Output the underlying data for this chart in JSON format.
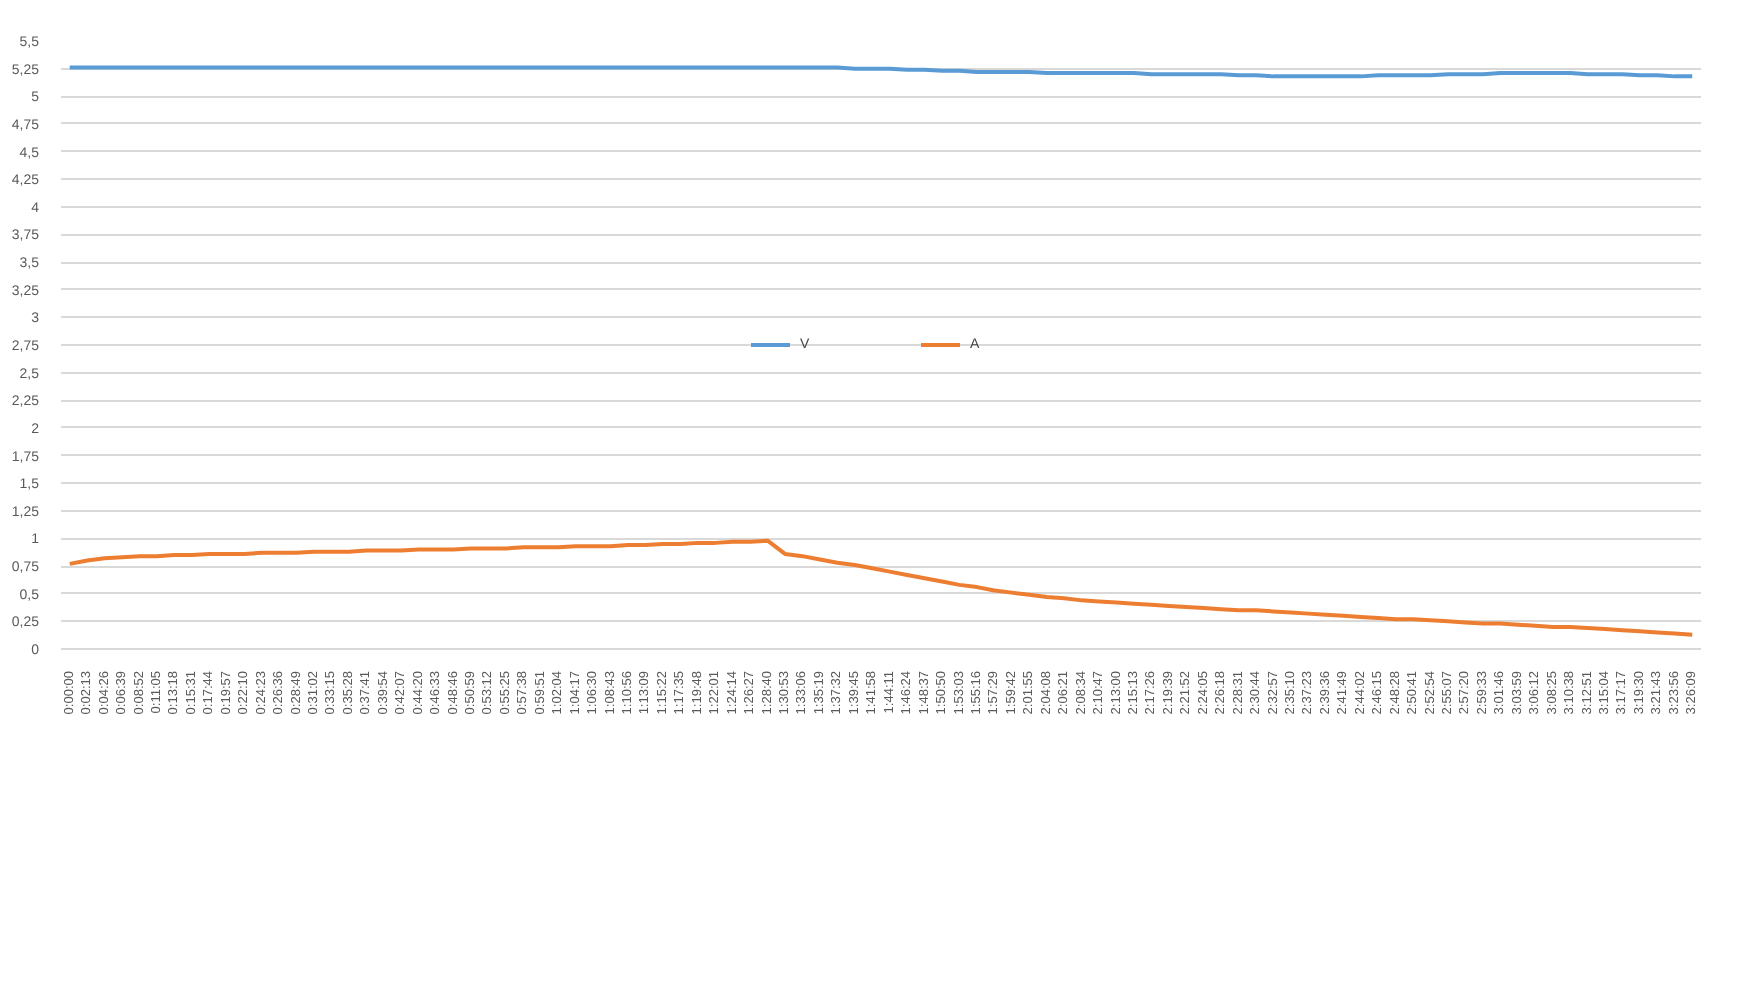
{
  "chart_data": {
    "type": "line",
    "categories": [
      "0:00:00",
      "0:02:13",
      "0:04:26",
      "0:06:39",
      "0:08:52",
      "0:11:05",
      "0:13:18",
      "0:15:31",
      "0:17:44",
      "0:19:57",
      "0:22:10",
      "0:24:23",
      "0:26:36",
      "0:28:49",
      "0:31:02",
      "0:33:15",
      "0:35:28",
      "0:37:41",
      "0:39:54",
      "0:42:07",
      "0:44:20",
      "0:46:33",
      "0:48:46",
      "0:50:59",
      "0:53:12",
      "0:55:25",
      "0:57:38",
      "0:59:51",
      "1:02:04",
      "1:04:17",
      "1:06:30",
      "1:08:43",
      "1:10:56",
      "1:13:09",
      "1:15:22",
      "1:17:35",
      "1:19:48",
      "1:22:01",
      "1:24:14",
      "1:26:27",
      "1:28:40",
      "1:30:53",
      "1:33:06",
      "1:35:19",
      "1:37:32",
      "1:39:45",
      "1:41:58",
      "1:44:11",
      "1:46:24",
      "1:48:37",
      "1:50:50",
      "1:53:03",
      "1:55:16",
      "1:57:29",
      "1:59:42",
      "2:01:55",
      "2:04:08",
      "2:06:21",
      "2:08:34",
      "2:10:47",
      "2:13:00",
      "2:15:13",
      "2:17:26",
      "2:19:39",
      "2:21:52",
      "2:24:05",
      "2:26:18",
      "2:28:31",
      "2:30:44",
      "2:32:57",
      "2:35:10",
      "2:37:23",
      "2:39:36",
      "2:41:49",
      "2:44:02",
      "2:46:15",
      "2:48:28",
      "2:50:41",
      "2:52:54",
      "2:55:07",
      "2:57:20",
      "2:59:33",
      "3:01:46",
      "3:03:59",
      "3:06:12",
      "3:08:25",
      "3:10:38",
      "3:12:51",
      "3:15:04",
      "3:17:17",
      "3:19:30",
      "3:21:43",
      "3:23:56",
      "3:26:09"
    ],
    "series": [
      {
        "name": "V",
        "color": "#5b9bd5",
        "values": [
          5.26,
          5.26,
          5.26,
          5.26,
          5.26,
          5.26,
          5.26,
          5.26,
          5.26,
          5.26,
          5.26,
          5.26,
          5.26,
          5.26,
          5.26,
          5.26,
          5.26,
          5.26,
          5.26,
          5.26,
          5.26,
          5.26,
          5.26,
          5.26,
          5.26,
          5.26,
          5.26,
          5.26,
          5.26,
          5.26,
          5.26,
          5.26,
          5.26,
          5.26,
          5.26,
          5.26,
          5.26,
          5.26,
          5.26,
          5.26,
          5.26,
          5.26,
          5.26,
          5.26,
          5.26,
          5.25,
          5.25,
          5.25,
          5.24,
          5.24,
          5.23,
          5.23,
          5.22,
          5.22,
          5.22,
          5.22,
          5.21,
          5.21,
          5.21,
          5.21,
          5.21,
          5.21,
          5.2,
          5.2,
          5.2,
          5.2,
          5.2,
          5.19,
          5.19,
          5.18,
          5.18,
          5.18,
          5.18,
          5.18,
          5.18,
          5.19,
          5.19,
          5.19,
          5.19,
          5.2,
          5.2,
          5.2,
          5.21,
          5.21,
          5.21,
          5.21,
          5.21,
          5.2,
          5.2,
          5.2,
          5.19,
          5.19,
          5.18,
          5.18
        ]
      },
      {
        "name": "A",
        "color": "#ed7d31",
        "values": [
          0.77,
          0.8,
          0.82,
          0.83,
          0.84,
          0.84,
          0.85,
          0.85,
          0.86,
          0.86,
          0.86,
          0.87,
          0.87,
          0.87,
          0.88,
          0.88,
          0.88,
          0.89,
          0.89,
          0.89,
          0.9,
          0.9,
          0.9,
          0.91,
          0.91,
          0.91,
          0.92,
          0.92,
          0.92,
          0.93,
          0.93,
          0.93,
          0.94,
          0.94,
          0.95,
          0.95,
          0.96,
          0.96,
          0.97,
          0.97,
          0.98,
          0.86,
          0.84,
          0.81,
          0.78,
          0.76,
          0.73,
          0.7,
          0.67,
          0.64,
          0.61,
          0.58,
          0.56,
          0.53,
          0.51,
          0.49,
          0.47,
          0.46,
          0.44,
          0.43,
          0.42,
          0.41,
          0.4,
          0.39,
          0.38,
          0.37,
          0.36,
          0.35,
          0.35,
          0.34,
          0.33,
          0.32,
          0.31,
          0.3,
          0.29,
          0.28,
          0.27,
          0.27,
          0.26,
          0.25,
          0.24,
          0.23,
          0.23,
          0.22,
          0.21,
          0.2,
          0.2,
          0.19,
          0.18,
          0.17,
          0.16,
          0.15,
          0.14,
          0.13
        ]
      }
    ],
    "ylim": [
      0,
      5.5
    ],
    "yticks": [
      0,
      {
        "value": 0.25,
        "label": "0,25"
      },
      {
        "value": 0.5,
        "label": "0,5"
      },
      {
        "value": 0.75,
        "label": "0,75"
      },
      1,
      {
        "value": 1.25,
        "label": "1,25"
      },
      {
        "value": 1.5,
        "label": "1,5"
      },
      {
        "value": 1.75,
        "label": "1,75"
      },
      2,
      {
        "value": 2.25,
        "label": "2,25"
      },
      {
        "value": 2.5,
        "label": "2,5"
      },
      {
        "value": 2.75,
        "label": "2,75"
      },
      3,
      {
        "value": 3.25,
        "label": "3,25"
      },
      {
        "value": 3.5,
        "label": "3,5"
      },
      {
        "value": 3.75,
        "label": "3,75"
      },
      4,
      {
        "value": 4.25,
        "label": "4,25"
      },
      {
        "value": 4.5,
        "label": "4,5"
      },
      {
        "value": 4.75,
        "label": "4,75"
      },
      5,
      {
        "value": 5.25,
        "label": "5,25"
      },
      {
        "value": 5.5,
        "label": "5,5"
      }
    ],
    "grid": "y",
    "legend": "center",
    "marker": "none",
    "line_style": "solid"
  }
}
